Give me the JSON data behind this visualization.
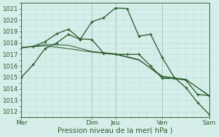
{
  "background_color": "#d5eeea",
  "grid_color": "#b8ddd8",
  "line_color": "#2d5c2e",
  "vline_color": "#3a3a3a",
  "xlabel": "Pression niveau de la mer( hPa )",
  "ylim": [
    1011.5,
    1021.5
  ],
  "yticks": [
    1012,
    1013,
    1014,
    1015,
    1016,
    1017,
    1018,
    1019,
    1020,
    1021
  ],
  "xtick_labels": [
    "Mer",
    "Dim",
    "Jeu",
    "Ven",
    "Sam"
  ],
  "xtick_positions": [
    0,
    36,
    48,
    72,
    96
  ],
  "xlim": [
    0,
    96
  ],
  "vline_positions": [
    0,
    36,
    48,
    72,
    96
  ],
  "minor_x_step": 4,
  "line1_x": [
    0,
    6,
    12,
    18,
    24,
    30,
    36,
    42,
    48,
    54,
    60,
    66,
    72,
    78,
    84,
    90,
    96
  ],
  "line1_y": [
    1015.0,
    1016.1,
    1017.5,
    1018.0,
    1018.75,
    1018.3,
    1019.85,
    1020.2,
    1021.05,
    1021.0,
    1018.6,
    1018.75,
    1016.7,
    1015.0,
    1014.1,
    1012.8,
    1011.75
  ],
  "line2_x": [
    0,
    6,
    12,
    18,
    24,
    30,
    36,
    42,
    48,
    54,
    60,
    66,
    72,
    78,
    84,
    90,
    96
  ],
  "line2_y": [
    1017.6,
    1017.7,
    1018.1,
    1018.8,
    1019.2,
    1018.35,
    1018.3,
    1017.1,
    1017.0,
    1017.0,
    1017.0,
    1016.0,
    1014.9,
    1014.9,
    1014.75,
    1013.5,
    1013.4
  ],
  "line3_x": [
    0,
    12,
    24,
    36,
    48,
    60,
    72,
    84,
    96
  ],
  "line3_y": [
    1017.6,
    1017.75,
    1017.5,
    1017.2,
    1017.0,
    1016.5,
    1015.1,
    1014.8,
    1013.4
  ],
  "line4_x": [
    0,
    12,
    24,
    36,
    48,
    60,
    72,
    84,
    96
  ],
  "line4_y": [
    1017.55,
    1017.85,
    1017.8,
    1017.25,
    1017.05,
    1016.55,
    1015.0,
    1014.82,
    1013.35
  ],
  "ylabel_fontsize": 6.5,
  "xlabel_fontsize": 7.5,
  "tick_fontsize": 6.5
}
